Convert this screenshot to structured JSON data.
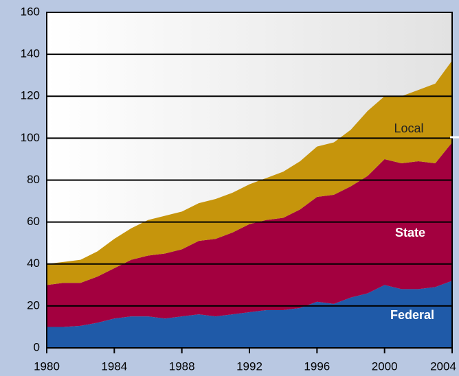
{
  "chart_data": {
    "type": "stacked_area",
    "x": [
      1980,
      1981,
      1982,
      1983,
      1984,
      1985,
      1986,
      1987,
      1988,
      1989,
      1990,
      1991,
      1992,
      1993,
      1994,
      1995,
      1996,
      1997,
      1998,
      1999,
      2000,
      2001,
      2002,
      2003,
      2004
    ],
    "series": [
      {
        "name": "Federal",
        "color": "#1f5aa8",
        "values": [
          10,
          10,
          10.5,
          12,
          14,
          15,
          15,
          14,
          15,
          16,
          15,
          16,
          17,
          18,
          18,
          19,
          22,
          21,
          24,
          26,
          30,
          28,
          28,
          29,
          32
        ]
      },
      {
        "name": "State",
        "color": "#a3003f",
        "values": [
          20,
          21,
          20.5,
          22,
          24,
          27,
          29,
          31,
          32,
          35,
          37,
          39,
          42,
          43,
          44,
          47,
          50,
          52,
          53,
          56,
          60,
          60,
          61,
          59,
          66
        ]
      },
      {
        "name": "Local",
        "color": "#c6950c",
        "values": [
          10,
          10,
          11,
          12,
          14,
          15,
          17,
          18,
          18,
          18,
          19,
          19,
          19,
          20,
          22,
          23,
          24,
          25,
          27,
          31,
          30,
          32,
          34,
          38,
          39
        ]
      }
    ],
    "xlim": [
      1980,
      2004
    ],
    "xticks": [
      1980,
      1984,
      1988,
      1992,
      1996,
      2000,
      2004
    ],
    "ylim": [
      0,
      160
    ],
    "yticks": [
      0,
      20,
      40,
      60,
      80,
      100,
      120,
      140,
      160
    ],
    "grid": true
  }
}
